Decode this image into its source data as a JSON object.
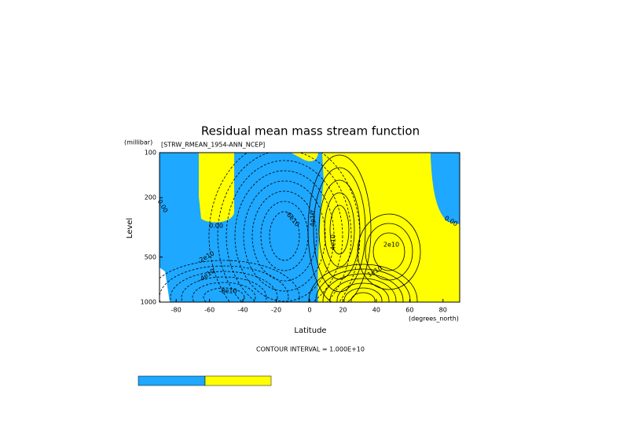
{
  "chart_data": {
    "type": "contour",
    "title": "Residual mean mass stream function",
    "subtitle": "[STRW_RMEAN_1954-ANN_NCEP]",
    "y_units": "(millibar)",
    "y_label": "Level",
    "x_label": "Latitude",
    "x_units": "(degrees_north)",
    "footnote": "CONTOUR INTERVAL = 1.000E+10",
    "xlim": [
      -90,
      90
    ],
    "xticks": [
      -80,
      -60,
      -40,
      -20,
      0,
      20,
      40,
      60,
      80
    ],
    "ylim": [
      1000,
      100
    ],
    "yticks": [
      100,
      200,
      500,
      1000
    ],
    "ylog": true,
    "colors": [
      "#1ea8ff",
      "#ffff00"
    ],
    "contour_labels": [
      "0.00",
      "0.00",
      "0.00",
      "-2e10",
      "-4e10",
      "-6e10",
      "-8e10",
      "4e10",
      "2e10",
      "1e10",
      "4e10"
    ]
  }
}
